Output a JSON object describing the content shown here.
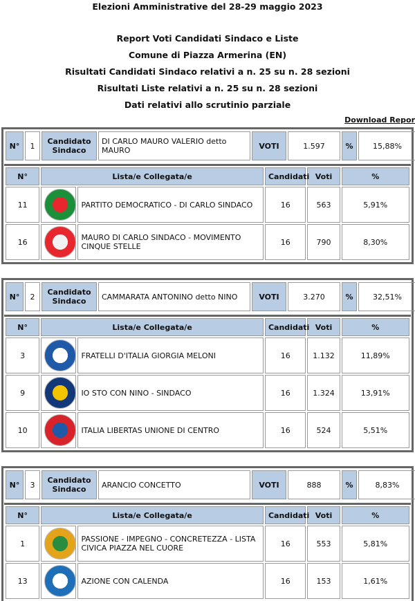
{
  "header": {
    "title": "Elezioni Amministrative del 28-29 maggio 2023",
    "lines": [
      "Report Voti Candidati Sindaco e Liste",
      "Comune di Piazza Armerina (EN)",
      "Risultati Candidati Sindaco relativi a n. 25 su n. 28 sezioni",
      "Risultati Liste relativi a n. 25 su n. 28 sezioni",
      "Dati relativi allo scrutinio parziale"
    ],
    "download": "Download Repor"
  },
  "labels": {
    "number": "N°",
    "candidate": "Candidato Sindaco",
    "votes": "VOTI",
    "percent": "%",
    "list_header": [
      "N°",
      "Lista/e Collegata/e",
      "Candidati",
      "Voti",
      "%"
    ]
  },
  "candidates": [
    {
      "number": "1",
      "name": "DI CARLO MAURO VALERIO detto MAURO",
      "votes": "1.597",
      "percent": "15,88%",
      "lists": [
        {
          "number": "11",
          "name": "PARTITO DEMOCRATICO - DI CARLO SINDACO",
          "candidates": "16",
          "votes": "563",
          "percent": "5,91%"
        },
        {
          "number": "16",
          "name": "MAURO DI CARLO SINDACO - MOVIMENTO CINQUE STELLE",
          "candidates": "16",
          "votes": "790",
          "percent": "8,30%"
        }
      ]
    },
    {
      "number": "2",
      "name": "CAMMARATA ANTONINO detto NINO",
      "votes": "3.270",
      "percent": "32,51%",
      "lists": [
        {
          "number": "3",
          "name": "FRATELLI D'ITALIA GIORGIA MELONI",
          "candidates": "16",
          "votes": "1.132",
          "percent": "11,89%"
        },
        {
          "number": "9",
          "name": "IO STO CON NINO - SINDACO",
          "candidates": "16",
          "votes": "1.324",
          "percent": "13,91%"
        },
        {
          "number": "10",
          "name": "ITALIA LIBERTAS UNIONE DI CENTRO",
          "candidates": "16",
          "votes": "524",
          "percent": "5,51%"
        }
      ]
    },
    {
      "number": "3",
      "name": "ARANCIO CONCETTO",
      "votes": "888",
      "percent": "8,83%",
      "lists": [
        {
          "number": "1",
          "name": "PASSIONE - IMPEGNO - CONCRETEZZA - LISTA CIVICA PIAZZA NEL CUORE",
          "candidates": "16",
          "votes": "553",
          "percent": "5,81%"
        },
        {
          "number": "13",
          "name": "AZIONE CON CALENDA",
          "candidates": "16",
          "votes": "153",
          "percent": "1,61%"
        }
      ]
    }
  ]
}
